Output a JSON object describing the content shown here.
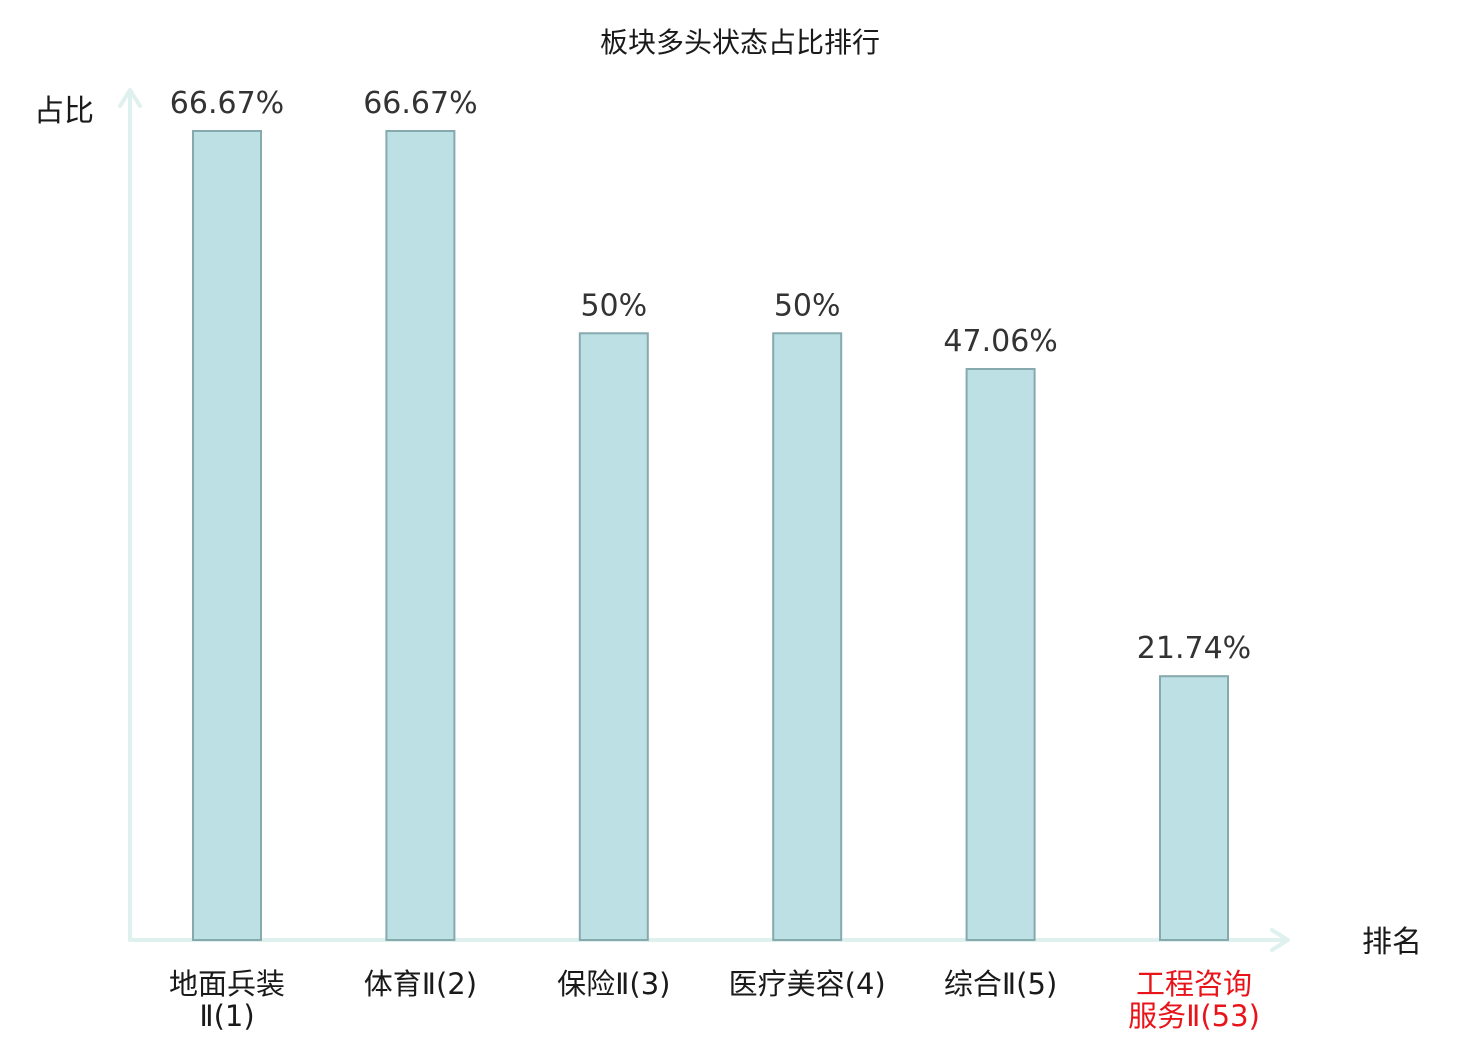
{
  "chart_data": {
    "type": "bar",
    "title": "板块多头状态占比排行",
    "ylabel": "占比",
    "xlabel": "排名",
    "ylim": [
      0,
      66.67
    ],
    "grid": false,
    "legend": "none",
    "categories": [
      {
        "lines": [
          "地面兵装",
          "Ⅱ(1)"
        ],
        "highlight": false
      },
      {
        "lines": [
          "体育Ⅱ(2)"
        ],
        "highlight": false
      },
      {
        "lines": [
          "保险Ⅱ(3)"
        ],
        "highlight": false
      },
      {
        "lines": [
          "医疗美容(4)"
        ],
        "highlight": false
      },
      {
        "lines": [
          "综合Ⅱ(5)"
        ],
        "highlight": false
      },
      {
        "lines": [
          "工程咨询",
          "服务Ⅱ(53)"
        ],
        "highlight": true
      }
    ],
    "values": [
      66.67,
      66.67,
      50,
      50,
      47.06,
      21.74
    ],
    "value_labels": [
      "66.67%",
      "66.67%",
      "50%",
      "50%",
      "47.06%",
      "21.74%"
    ]
  },
  "colors": {
    "bar_fill": "#bce0e3",
    "bar_stroke": "#86a9ad",
    "axis": "#dff1ee",
    "text": "#1a1a1a",
    "value_text": "#333333",
    "highlight": "#e8141a"
  }
}
